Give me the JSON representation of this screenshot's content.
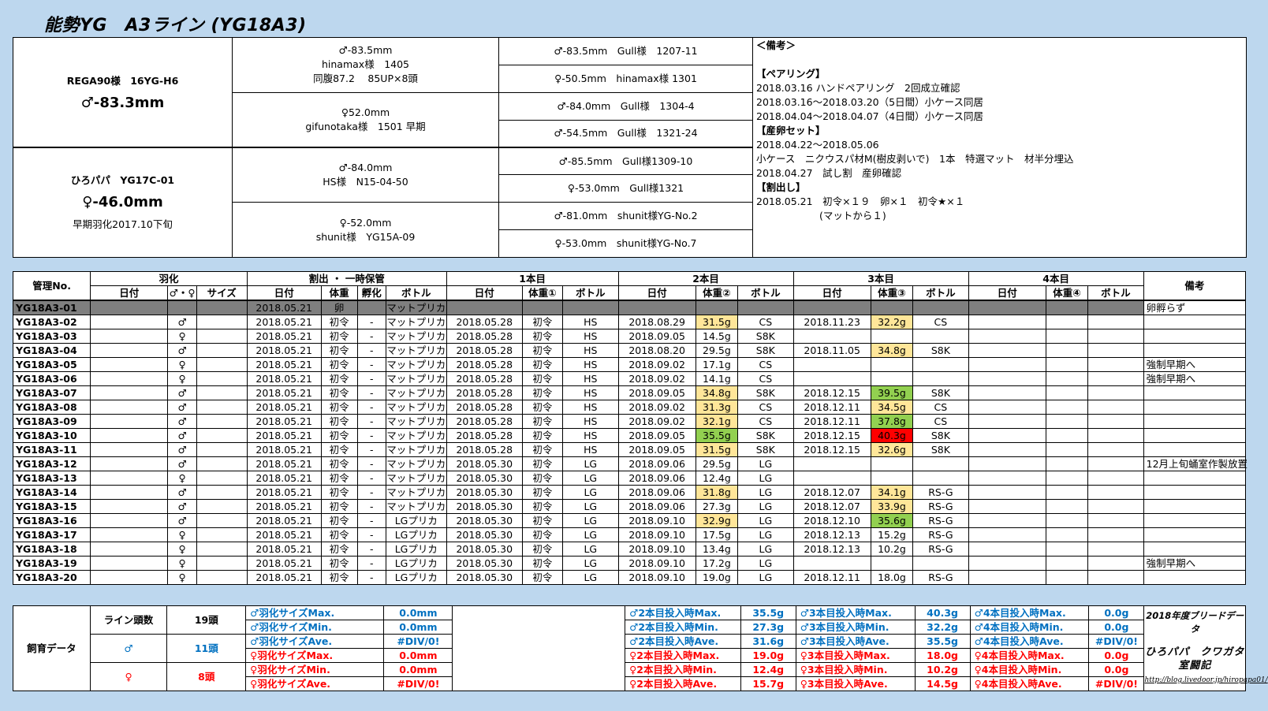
{
  "title": "能勢YG　A3ライン (YG18A3)",
  "parents": {
    "male": {
      "name": "REGA90様　16YG-H6",
      "size": "♂-83.3mm"
    },
    "female": {
      "name": "ひろパパ　YG17C-01",
      "size": "♀-46.0mm",
      "note": "早期羽化2017.10下旬"
    },
    "gen2": [
      [
        "♂-83.5mm",
        "hinamax様　1405",
        "同腹87.2　 85UP×8頭"
      ],
      [
        "♀52.0mm",
        "gifunotaka様　1501 早期"
      ],
      [
        "♂-84.0mm",
        "HS様　N15-04-50"
      ],
      [
        "♀-52.0mm",
        "shunit様　YG15A-09"
      ]
    ],
    "gen3": [
      "♂-83.5mm　Gull様　1207-11",
      "♀-50.5mm　hinamax様 1301",
      "♂-84.0mm　Gull様　1304-4",
      "♂-54.5mm　Gull様　1321-24",
      "♂-85.5mm　Gull様1309-10",
      "♀-53.0mm　Gull様1321",
      "♂-81.0mm　shunit様YG-No.2",
      "♀-53.0mm　shunit様YG-No.7"
    ],
    "notes": {
      "header": "＜備考＞",
      "pairing_head": "【ペアリング】",
      "pairing": [
        "2018.03.16 ハンドペアリング　2回成立確認",
        "2018.03.16～2018.03.20（5日間）小ケース同居",
        "2018.04.04～2018.04.07（4日間）小ケース同居"
      ],
      "egg_head": "【産卵セット】",
      "egg": [
        "2018.04.22～2018.05.06",
        "小ケース　ニクウスパ材M(樹皮剥いで)　1本　特選マット　材半分埋込",
        "2018.04.27　試し割　産卵確認"
      ],
      "split_head": "【割出し】",
      "split": [
        "2018.05.21　初令×１９　卵×１　初令★×１",
        "(マットから１)"
      ]
    }
  },
  "table": {
    "h1": {
      "id": "管理No.",
      "eclosion": "羽化",
      "split": "割出 ・ 一時保管",
      "b1": "1本目",
      "b2": "2本目",
      "b3": "3本目",
      "b4": "4本目",
      "note": "備考"
    },
    "h2": {
      "date": "日付",
      "sex": "♂・♀",
      "size": "サイズ",
      "weight": "体重",
      "hatch": "孵化",
      "bottle": "ボトル",
      "w1": "体重①",
      "w2": "体重②",
      "w3": "体重③",
      "w4": "体重④"
    },
    "rows": [
      {
        "id": "YG18A3-01",
        "sex": "",
        "sd": "2018.05.21",
        "sw": "卵",
        "sh": "",
        "sb": "マットプリカ",
        "d1": "",
        "w1": "",
        "b1": "",
        "d2": "",
        "w2": "",
        "b2": "",
        "d3": "",
        "w3": "",
        "b3": "",
        "note": "卵孵らず",
        "dark": true
      },
      {
        "id": "YG18A3-02",
        "sex": "♂",
        "sd": "2018.05.21",
        "sw": "初令",
        "sh": "-",
        "sb": "マットプリカ",
        "d1": "2018.05.28",
        "w1": "初令",
        "b1": "HS",
        "d2": "2018.08.29",
        "w2": "31.5g",
        "c2": "y",
        "b2": "CS",
        "d3": "2018.11.23",
        "w3": "32.2g",
        "c3": "y",
        "b3": "CS",
        "note": ""
      },
      {
        "id": "YG18A3-03",
        "sex": "♀",
        "sd": "2018.05.21",
        "sw": "初令",
        "sh": "-",
        "sb": "マットプリカ",
        "d1": "2018.05.28",
        "w1": "初令",
        "b1": "HS",
        "d2": "2018.09.05",
        "w2": "14.5g",
        "b2": "S8K",
        "d3": "",
        "w3": "",
        "b3": "",
        "note": ""
      },
      {
        "id": "YG18A3-04",
        "sex": "♂",
        "sd": "2018.05.21",
        "sw": "初令",
        "sh": "-",
        "sb": "マットプリカ",
        "d1": "2018.05.28",
        "w1": "初令",
        "b1": "HS",
        "d2": "2018.08.20",
        "w2": "29.5g",
        "b2": "S8K",
        "d3": "2018.11.05",
        "w3": "34.8g",
        "c3": "y",
        "b3": "S8K",
        "note": ""
      },
      {
        "id": "YG18A3-05",
        "sex": "♀",
        "sd": "2018.05.21",
        "sw": "初令",
        "sh": "-",
        "sb": "マットプリカ",
        "d1": "2018.05.28",
        "w1": "初令",
        "b1": "HS",
        "d2": "2018.09.02",
        "w2": "17.1g",
        "b2": "CS",
        "d3": "",
        "w3": "",
        "b3": "",
        "note": "強制早期へ"
      },
      {
        "id": "YG18A3-06",
        "sex": "♀",
        "sd": "2018.05.21",
        "sw": "初令",
        "sh": "-",
        "sb": "マットプリカ",
        "d1": "2018.05.28",
        "w1": "初令",
        "b1": "HS",
        "d2": "2018.09.02",
        "w2": "14.1g",
        "b2": "CS",
        "d3": "",
        "w3": "",
        "b3": "",
        "note": "強制早期へ"
      },
      {
        "id": "YG18A3-07",
        "sex": "♂",
        "sd": "2018.05.21",
        "sw": "初令",
        "sh": "-",
        "sb": "マットプリカ",
        "d1": "2018.05.28",
        "w1": "初令",
        "b1": "HS",
        "d2": "2018.09.05",
        "w2": "34.8g",
        "c2": "y",
        "b2": "S8K",
        "d3": "2018.12.15",
        "w3": "39.5g",
        "c3": "g",
        "b3": "S8K",
        "note": ""
      },
      {
        "id": "YG18A3-08",
        "sex": "♂",
        "sd": "2018.05.21",
        "sw": "初令",
        "sh": "-",
        "sb": "マットプリカ",
        "d1": "2018.05.28",
        "w1": "初令",
        "b1": "HS",
        "d2": "2018.09.02",
        "w2": "31.3g",
        "c2": "y",
        "b2": "CS",
        "d3": "2018.12.11",
        "w3": "34.5g",
        "c3": "y",
        "b3": "CS",
        "note": ""
      },
      {
        "id": "YG18A3-09",
        "sex": "♂",
        "sd": "2018.05.21",
        "sw": "初令",
        "sh": "-",
        "sb": "マットプリカ",
        "d1": "2018.05.28",
        "w1": "初令",
        "b1": "HS",
        "d2": "2018.09.02",
        "w2": "32.1g",
        "c2": "y",
        "b2": "CS",
        "d3": "2018.12.11",
        "w3": "37.8g",
        "c3": "g",
        "b3": "CS",
        "note": ""
      },
      {
        "id": "YG18A3-10",
        "sex": "♂",
        "sd": "2018.05.21",
        "sw": "初令",
        "sh": "-",
        "sb": "マットプリカ",
        "d1": "2018.05.28",
        "w1": "初令",
        "b1": "HS",
        "d2": "2018.09.05",
        "w2": "35.5g",
        "c2": "g",
        "b2": "S8K",
        "d3": "2018.12.15",
        "w3": "40.3g",
        "c3": "r",
        "b3": "S8K",
        "note": ""
      },
      {
        "id": "YG18A3-11",
        "sex": "♂",
        "sd": "2018.05.21",
        "sw": "初令",
        "sh": "-",
        "sb": "マットプリカ",
        "d1": "2018.05.28",
        "w1": "初令",
        "b1": "HS",
        "d2": "2018.09.05",
        "w2": "31.5g",
        "c2": "y",
        "b2": "S8K",
        "d3": "2018.12.15",
        "w3": "32.6g",
        "c3": "y",
        "b3": "S8K",
        "note": ""
      },
      {
        "id": "YG18A3-12",
        "sex": "♂",
        "sd": "2018.05.21",
        "sw": "初令",
        "sh": "-",
        "sb": "マットプリカ",
        "d1": "2018.05.30",
        "w1": "初令",
        "b1": "LG",
        "d2": "2018.09.06",
        "w2": "29.5g",
        "b2": "LG",
        "d3": "",
        "w3": "",
        "b3": "",
        "note": "12月上旬蛹室作製放置"
      },
      {
        "id": "YG18A3-13",
        "sex": "♀",
        "sd": "2018.05.21",
        "sw": "初令",
        "sh": "-",
        "sb": "マットプリカ",
        "d1": "2018.05.30",
        "w1": "初令",
        "b1": "LG",
        "d2": "2018.09.06",
        "w2": "12.4g",
        "b2": "LG",
        "d3": "",
        "w3": "",
        "b3": "",
        "note": ""
      },
      {
        "id": "YG18A3-14",
        "sex": "♂",
        "sd": "2018.05.21",
        "sw": "初令",
        "sh": "-",
        "sb": "マットプリカ",
        "d1": "2018.05.30",
        "w1": "初令",
        "b1": "LG",
        "d2": "2018.09.06",
        "w2": "31.8g",
        "c2": "y",
        "b2": "LG",
        "d3": "2018.12.07",
        "w3": "34.1g",
        "c3": "y",
        "b3": "RS-G",
        "note": ""
      },
      {
        "id": "YG18A3-15",
        "sex": "♂",
        "sd": "2018.05.21",
        "sw": "初令",
        "sh": "-",
        "sb": "マットプリカ",
        "d1": "2018.05.30",
        "w1": "初令",
        "b1": "LG",
        "d2": "2018.09.06",
        "w2": "27.3g",
        "b2": "LG",
        "d3": "2018.12.07",
        "w3": "33.9g",
        "c3": "y",
        "b3": "RS-G",
        "note": ""
      },
      {
        "id": "YG18A3-16",
        "sex": "♂",
        "sd": "2018.05.21",
        "sw": "初令",
        "sh": "-",
        "sb": "LGプリカ",
        "d1": "2018.05.30",
        "w1": "初令",
        "b1": "LG",
        "d2": "2018.09.10",
        "w2": "32.9g",
        "c2": "y",
        "b2": "LG",
        "d3": "2018.12.10",
        "w3": "35.6g",
        "c3": "g",
        "b3": "RS-G",
        "note": ""
      },
      {
        "id": "YG18A3-17",
        "sex": "♀",
        "sd": "2018.05.21",
        "sw": "初令",
        "sh": "-",
        "sb": "LGプリカ",
        "d1": "2018.05.30",
        "w1": "初令",
        "b1": "LG",
        "d2": "2018.09.10",
        "w2": "17.5g",
        "b2": "LG",
        "d3": "2018.12.13",
        "w3": "15.2g",
        "b3": "RS-G",
        "note": ""
      },
      {
        "id": "YG18A3-18",
        "sex": "♀",
        "sd": "2018.05.21",
        "sw": "初令",
        "sh": "-",
        "sb": "LGプリカ",
        "d1": "2018.05.30",
        "w1": "初令",
        "b1": "LG",
        "d2": "2018.09.10",
        "w2": "13.4g",
        "b2": "LG",
        "d3": "2018.12.13",
        "w3": "10.2g",
        "b3": "RS-G",
        "note": ""
      },
      {
        "id": "YG18A3-19",
        "sex": "♀",
        "sd": "2018.05.21",
        "sw": "初令",
        "sh": "-",
        "sb": "LGプリカ",
        "d1": "2018.05.30",
        "w1": "初令",
        "b1": "LG",
        "d2": "2018.09.10",
        "w2": "17.2g",
        "b2": "LG",
        "d3": "",
        "w3": "",
        "b3": "",
        "note": "強制早期へ"
      },
      {
        "id": "YG18A3-20",
        "sex": "♀",
        "sd": "2018.05.21",
        "sw": "初令",
        "sh": "-",
        "sb": "LGプリカ",
        "d1": "2018.05.30",
        "w1": "初令",
        "b1": "LG",
        "d2": "2018.09.10",
        "w2": "19.0g",
        "b2": "LG",
        "d3": "2018.12.11",
        "w3": "18.0g",
        "b3": "RS-G",
        "note": ""
      }
    ]
  },
  "summary": {
    "group": "飼育データ",
    "line_label": "ライン頭数",
    "line_count": "19頭",
    "male_label": "♂",
    "male_count": "11頭",
    "female_label": "♀",
    "female_count": "8頭",
    "eclosion": [
      [
        "♂羽化サイズMax.",
        "0.0mm"
      ],
      [
        "♂羽化サイズMin.",
        "0.0mm"
      ],
      [
        "♂羽化サイズAve.",
        "#DIV/0!"
      ],
      [
        "♀羽化サイズMax.",
        "0.0mm"
      ],
      [
        "♀羽化サイズMin.",
        "0.0mm"
      ],
      [
        "♀羽化サイズAve.",
        "#DIV/0!"
      ]
    ],
    "b2": [
      [
        "♂2本目投入時Max.",
        "35.5g"
      ],
      [
        "♂2本目投入時Min.",
        "27.3g"
      ],
      [
        "♂2本目投入時Ave.",
        "31.6g"
      ],
      [
        "♀2本目投入時Max.",
        "19.0g"
      ],
      [
        "♀2本目投入時Min.",
        "12.4g"
      ],
      [
        "♀2本目投入時Ave.",
        "15.7g"
      ]
    ],
    "b3": [
      [
        "♂3本目投入時Max.",
        "40.3g"
      ],
      [
        "♂3本目投入時Min.",
        "32.2g"
      ],
      [
        "♂3本目投入時Ave.",
        "35.5g"
      ],
      [
        "♀3本目投入時Max.",
        "18.0g"
      ],
      [
        "♀3本目投入時Min.",
        "10.2g"
      ],
      [
        "♀3本目投入時Ave.",
        "14.5g"
      ]
    ],
    "b4": [
      [
        "♂4本目投入時Max.",
        "0.0g"
      ],
      [
        "♂4本目投入時Min.",
        "0.0g"
      ],
      [
        "♂4本目投入時Ave.",
        "#DIV/0!"
      ],
      [
        "♀4本目投入時Max.",
        "0.0g"
      ],
      [
        "♀4本目投入時Min.",
        "0.0g"
      ],
      [
        "♀4本目投入時Ave.",
        "#DIV/0!"
      ]
    ],
    "brand": {
      "line1": "2018年度ブリードデータ",
      "line2": "ひろパパ　クワガタ室闘記",
      "line3": "http://blog.livedoor.jp/hiropapa01/"
    }
  }
}
